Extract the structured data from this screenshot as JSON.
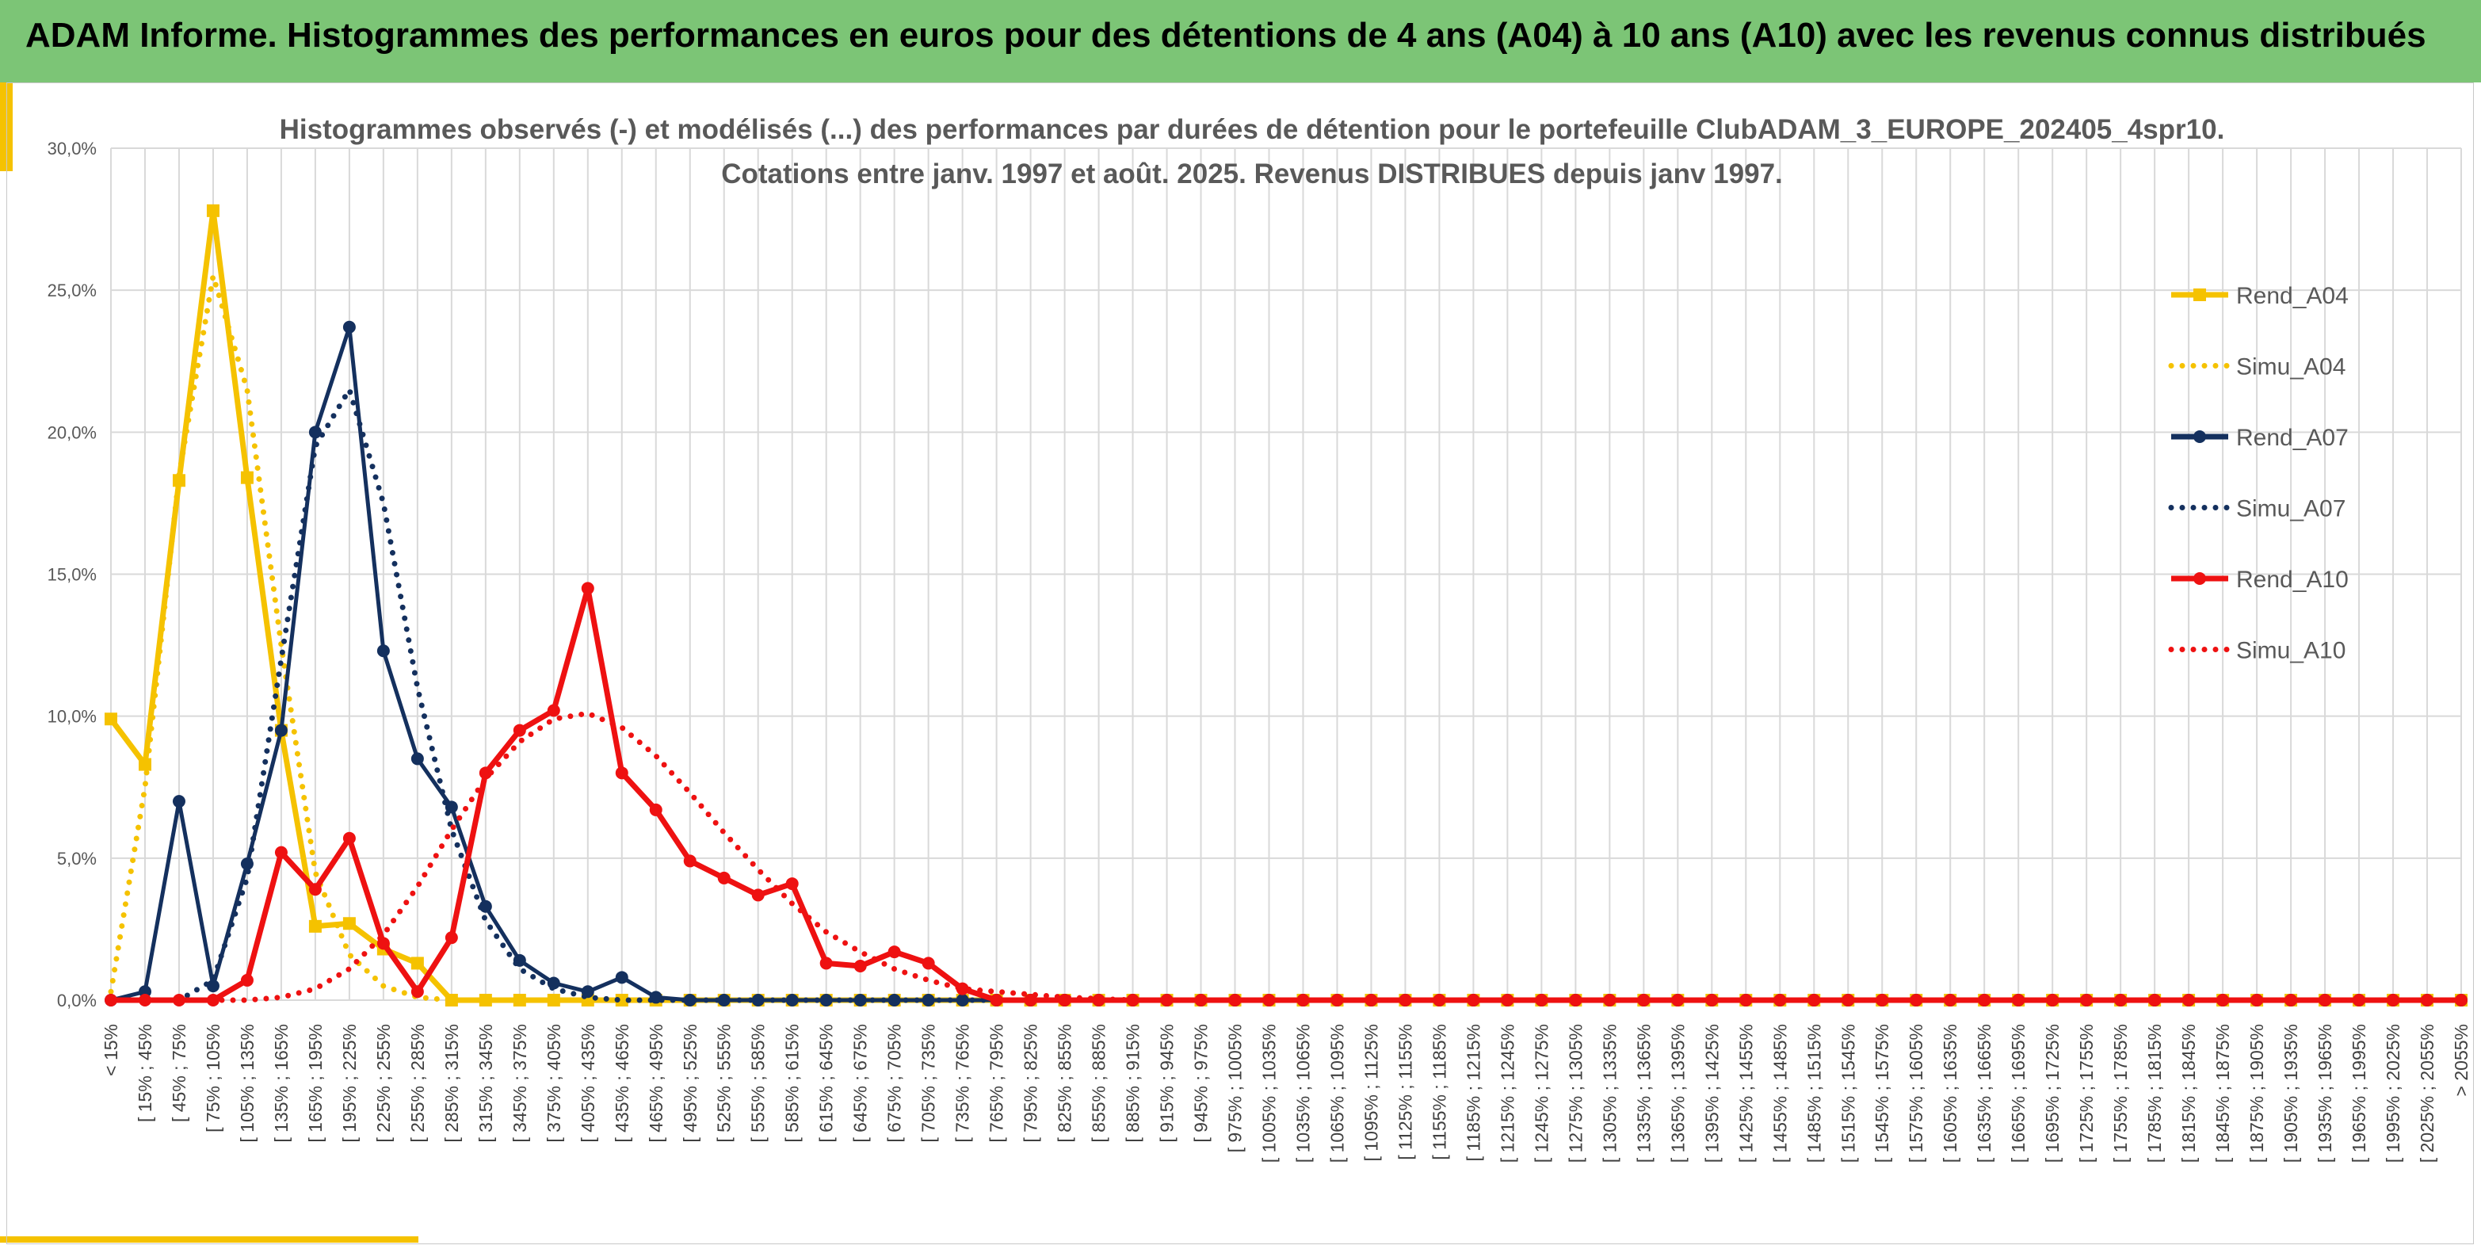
{
  "header": {
    "title": "ADAM Informe. Histogrammes des performances en euros pour des détentions de 4 ans (A04) à 10 ans (A10) avec les revenus connus distribués"
  },
  "colors": {
    "header_bg": "#7cc576",
    "accent": "#f5c200",
    "a04": "#f5c200",
    "a07": "#14305e",
    "a10": "#ee1111"
  },
  "chart_data": {
    "type": "line",
    "title_lines": [
      "Histogrammes observés (-) et modélisés (...) des performances par durées de détention pour le portefeuille ClubADAM_3_EUROPE_202405_4spr10.",
      "Cotations entre janv. 1997 et août. 2025. Revenus DISTRIBUES depuis janv 1997."
    ],
    "y_ticks": [
      "0,0%",
      "5,0%",
      "10,0%",
      "15,0%",
      "20,0%",
      "25,0%",
      "30,0%"
    ],
    "ylim": [
      0,
      30
    ],
    "grid": true,
    "legend_position": "right",
    "categories": [
      "< 15%",
      "[ 15% ; 45%",
      "[ 45% ; 75%",
      "[ 75% ; 105%",
      "[ 105% ; 135%",
      "[ 135% ; 165%",
      "[ 165% ; 195%",
      "[ 195% ; 225%",
      "[ 225% ; 255%",
      "[ 255% ; 285%",
      "[ 285% ; 315%",
      "[ 315% ; 345%",
      "[ 345% ; 375%",
      "[ 375% ; 405%",
      "[ 405% ; 435%",
      "[ 435% ; 465%",
      "[ 465% ; 495%",
      "[ 495% ; 525%",
      "[ 525% ; 555%",
      "[ 555% ; 585%",
      "[ 585% ; 615%",
      "[ 615% ; 645%",
      "[ 645% ; 675%",
      "[ 675% ; 705%",
      "[ 705% ; 735%",
      "[ 735% ; 765%",
      "[ 765% ; 795%",
      "[ 795% ; 825%",
      "[ 825% ; 855%",
      "[ 855% ; 885%",
      "[ 885% ; 915%",
      "[ 915% ; 945%",
      "[ 945% ; 975%",
      "[ 975% ; 1005%",
      "[ 1005% ; 1035%",
      "[ 1035% ; 1065%",
      "[ 1065% ; 1095%",
      "[ 1095% ; 1125%",
      "[ 1125% ; 1155%",
      "[ 1155% ; 1185%",
      "[ 1185% ; 1215%",
      "[ 1215% ; 1245%",
      "[ 1245% ; 1275%",
      "[ 1275% ; 1305%",
      "[ 1305% ; 1335%",
      "[ 1335% ; 1365%",
      "[ 1365% ; 1395%",
      "[ 1395% ; 1425%",
      "[ 1425% ; 1455%",
      "[ 1455% ; 1485%",
      "[ 1485% ; 1515%",
      "[ 1515% ; 1545%",
      "[ 1545% ; 1575%",
      "[ 1575% ; 1605%",
      "[ 1605% ; 1635%",
      "[ 1635% ; 1665%",
      "[ 1665% ; 1695%",
      "[ 1695% ; 1725%",
      "[ 1725% ; 1755%",
      "[ 1755% ; 1785%",
      "[ 1785% ; 1815%",
      "[ 1815% ; 1845%",
      "[ 1845% ; 1875%",
      "[ 1875% ; 1905%",
      "[ 1905% ; 1935%",
      "[ 1935% ; 1965%",
      "[ 1965% ; 1995%",
      "[ 1995% ; 2025%",
      "[ 2025% ; 2055%",
      "> 2055%"
    ],
    "series": [
      {
        "name": "Rend_A04",
        "style": "solid",
        "marker": "square",
        "color": "#f5c200",
        "values": [
          9.9,
          8.3,
          18.3,
          27.8,
          18.4,
          9.5,
          2.6,
          2.7,
          1.8,
          1.3,
          0,
          0,
          0,
          0,
          0,
          0,
          0,
          0,
          0,
          0,
          0,
          0,
          0,
          0,
          0,
          0,
          0,
          0,
          0,
          0,
          0,
          0,
          0,
          0,
          0,
          0,
          0,
          0,
          0,
          0,
          0,
          0,
          0,
          0,
          0,
          0,
          0,
          0,
          0,
          0,
          0,
          0,
          0,
          0,
          0,
          0,
          0,
          0,
          0,
          0,
          0,
          0,
          0,
          0,
          0,
          0,
          0,
          0,
          0,
          0
        ]
      },
      {
        "name": "Simu_A04",
        "style": "dotted",
        "marker": "none",
        "color": "#f5c200",
        "values": [
          0.3,
          7.5,
          18.5,
          25.5,
          21.5,
          12.5,
          4.5,
          1.6,
          0.5,
          0.1,
          0,
          0,
          0,
          0,
          0,
          0,
          0,
          0,
          0,
          0,
          0,
          0,
          0,
          0,
          0,
          0,
          0,
          0,
          0,
          0,
          0,
          0,
          0,
          0,
          0,
          0,
          0,
          0,
          0,
          0,
          0,
          0,
          0,
          0,
          0,
          0,
          0,
          0,
          0,
          0,
          0,
          0,
          0,
          0,
          0,
          0,
          0,
          0,
          0,
          0,
          0,
          0,
          0,
          0,
          0,
          0,
          0,
          0,
          0,
          0
        ]
      },
      {
        "name": "Rend_A07",
        "style": "solid",
        "marker": "circle",
        "color": "#14305e",
        "values": [
          0,
          0.3,
          7.0,
          0.5,
          4.8,
          9.5,
          20.0,
          23.7,
          12.3,
          8.5,
          6.8,
          3.3,
          1.4,
          0.6,
          0.3,
          0.8,
          0.1,
          0,
          0,
          0,
          0,
          0,
          0,
          0,
          0,
          0,
          0,
          0,
          0,
          0,
          0,
          0,
          0,
          0,
          0,
          0,
          0,
          0,
          0,
          0,
          0,
          0,
          0,
          0,
          0,
          0,
          0,
          0,
          0,
          0,
          0,
          0,
          0,
          0,
          0,
          0,
          0,
          0,
          0,
          0,
          0,
          0,
          0,
          0,
          0,
          0,
          0,
          0,
          0,
          0
        ]
      },
      {
        "name": "Simu_A07",
        "style": "dotted",
        "marker": "none",
        "color": "#14305e",
        "values": [
          0,
          0,
          0,
          0.7,
          4.3,
          12.0,
          19.5,
          21.5,
          17.5,
          11.0,
          6.0,
          2.8,
          1.1,
          0.4,
          0.1,
          0,
          0,
          0,
          0,
          0,
          0,
          0,
          0,
          0,
          0,
          0,
          0,
          0,
          0,
          0,
          0,
          0,
          0,
          0,
          0,
          0,
          0,
          0,
          0,
          0,
          0,
          0,
          0,
          0,
          0,
          0,
          0,
          0,
          0,
          0,
          0,
          0,
          0,
          0,
          0,
          0,
          0,
          0,
          0,
          0,
          0,
          0,
          0,
          0,
          0,
          0,
          0,
          0,
          0,
          0
        ]
      },
      {
        "name": "Rend_A10",
        "style": "solid",
        "marker": "circle",
        "color": "#ee1111",
        "values": [
          0,
          0,
          0,
          0,
          0.7,
          5.2,
          3.9,
          5.7,
          2.0,
          0.3,
          2.2,
          8.0,
          9.5,
          10.2,
          14.5,
          8.0,
          6.7,
          4.9,
          4.3,
          3.7,
          4.1,
          1.3,
          1.2,
          1.7,
          1.3,
          0.4,
          0,
          0,
          0,
          0,
          0,
          0,
          0,
          0,
          0,
          0,
          0,
          0,
          0,
          0,
          0,
          0,
          0,
          0,
          0,
          0,
          0,
          0,
          0,
          0,
          0,
          0,
          0,
          0,
          0,
          0,
          0,
          0,
          0,
          0,
          0,
          0,
          0,
          0,
          0,
          0,
          0,
          0,
          0,
          0
        ]
      },
      {
        "name": "Simu_A10",
        "style": "dotted",
        "marker": "none",
        "color": "#ee1111",
        "values": [
          0,
          0,
          0,
          0,
          0,
          0.1,
          0.4,
          1.1,
          2.3,
          4.0,
          6.0,
          7.8,
          9.1,
          9.9,
          10.1,
          9.6,
          8.6,
          7.3,
          5.9,
          4.6,
          3.4,
          2.4,
          1.7,
          1.1,
          0.7,
          0.4,
          0.3,
          0.2,
          0.1,
          0.05,
          0,
          0,
          0,
          0,
          0,
          0,
          0,
          0,
          0,
          0,
          0,
          0,
          0,
          0,
          0,
          0,
          0,
          0,
          0,
          0,
          0,
          0,
          0,
          0,
          0,
          0,
          0,
          0,
          0,
          0,
          0,
          0,
          0,
          0,
          0,
          0,
          0,
          0,
          0,
          0
        ]
      }
    ]
  }
}
